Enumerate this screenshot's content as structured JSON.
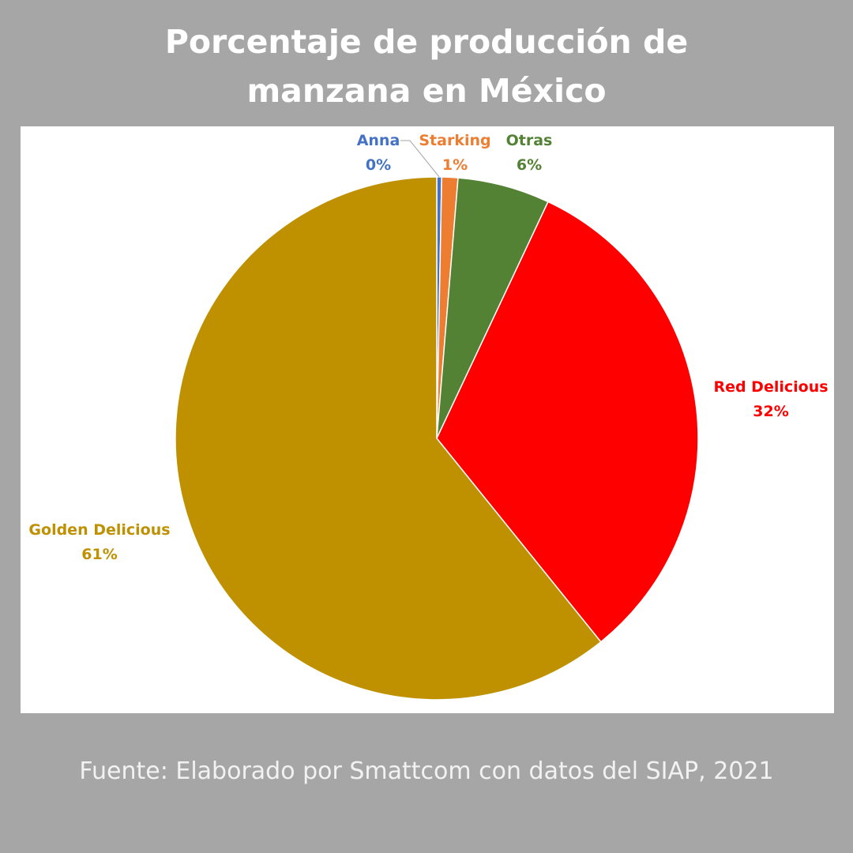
{
  "title": {
    "line1": "Porcentaje de producción de",
    "line2": "manzana en México"
  },
  "source": "Fuente: Elaborado por Smattcom con datos del SIAP, 2021",
  "chart_data": {
    "type": "pie",
    "title": "Porcentaje de producción de manzana en México",
    "start": "12 o'clock, clockwise",
    "slices": [
      {
        "name": "Anna",
        "value": 0.3,
        "label": "0%",
        "color": "#4472c4"
      },
      {
        "name": "Starking",
        "value": 1.0,
        "label": "1%",
        "color": "#ed7d31"
      },
      {
        "name": "Otras",
        "value": 5.7,
        "label": "6%",
        "color": "#548235"
      },
      {
        "name": "Red Delicious",
        "value": 32.2,
        "label": "32%",
        "color": "#ff0000"
      },
      {
        "name": "Golden Delicious",
        "value": 60.8,
        "label": "61%",
        "color": "#bf9000"
      }
    ]
  }
}
